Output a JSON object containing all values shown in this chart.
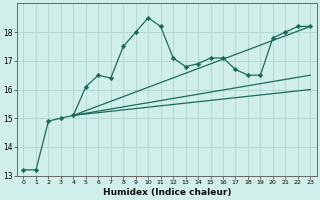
{
  "xlabel": "Humidex (Indice chaleur)",
  "background_color": "#d0eeea",
  "grid_color": "#b0d4d0",
  "line_color": "#1a6b5a",
  "xlim": [
    -0.5,
    23.5
  ],
  "ylim": [
    13.0,
    19.0
  ],
  "yticks": [
    13,
    14,
    15,
    16,
    17,
    18
  ],
  "xticks": [
    0,
    1,
    2,
    3,
    4,
    5,
    6,
    7,
    8,
    9,
    10,
    11,
    12,
    13,
    14,
    15,
    16,
    17,
    18,
    19,
    20,
    21,
    22,
    23
  ],
  "data_series": {
    "x": [
      0,
      1,
      2,
      3,
      4,
      5,
      6,
      7,
      8,
      9,
      10,
      11,
      12,
      13,
      14,
      15,
      16,
      17,
      18,
      19,
      20,
      21,
      22,
      23
    ],
    "y": [
      13.2,
      13.2,
      14.9,
      15.0,
      15.1,
      16.1,
      16.5,
      16.4,
      17.5,
      18.0,
      18.5,
      18.2,
      17.1,
      16.8,
      16.9,
      17.1,
      17.1,
      16.7,
      16.5,
      16.5,
      17.8,
      18.0,
      18.2,
      18.2
    ]
  },
  "regression_lines": [
    {
      "x0": 4,
      "y0": 15.1,
      "x1": 23,
      "y1": 18.2
    },
    {
      "x0": 4,
      "y0": 15.1,
      "x1": 23,
      "y1": 16.5
    },
    {
      "x0": 4,
      "y0": 15.1,
      "x1": 23,
      "y1": 16.0
    }
  ]
}
